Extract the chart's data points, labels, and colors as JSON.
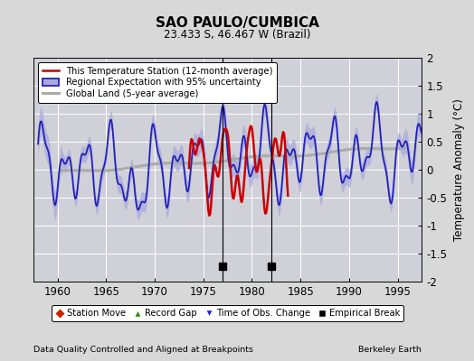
{
  "title": "SAO PAULO/CUMBICA",
  "subtitle": "23.433 S, 46.467 W (Brazil)",
  "xlabel_bottom": "Data Quality Controlled and Aligned at Breakpoints",
  "xlabel_right": "Berkeley Earth",
  "ylabel": "Temperature Anomaly (°C)",
  "ylim": [
    -2,
    2
  ],
  "xlim": [
    1957.5,
    1997.5
  ],
  "yticks": [
    -2,
    -1.5,
    -1,
    -0.5,
    0,
    0.5,
    1,
    1.5,
    2
  ],
  "xticks": [
    1960,
    1965,
    1970,
    1975,
    1980,
    1985,
    1990,
    1995
  ],
  "bg_color": "#d8d8d8",
  "plot_bg_color": "#d0d0d8",
  "grid_color": "#ffffff",
  "regional_line_color": "#2222bb",
  "regional_fill_color": "#aaaadd",
  "station_line_color": "#cc0000",
  "global_line_color": "#aaaaaa",
  "empirical_break_years": [
    1977,
    1982
  ],
  "legend_labels": [
    "This Temperature Station (12-month average)",
    "Regional Expectation with 95% uncertainty",
    "Global Land (5-year average)"
  ],
  "legend_marker_labels": [
    "Station Move",
    "Record Gap",
    "Time of Obs. Change",
    "Empirical Break"
  ]
}
